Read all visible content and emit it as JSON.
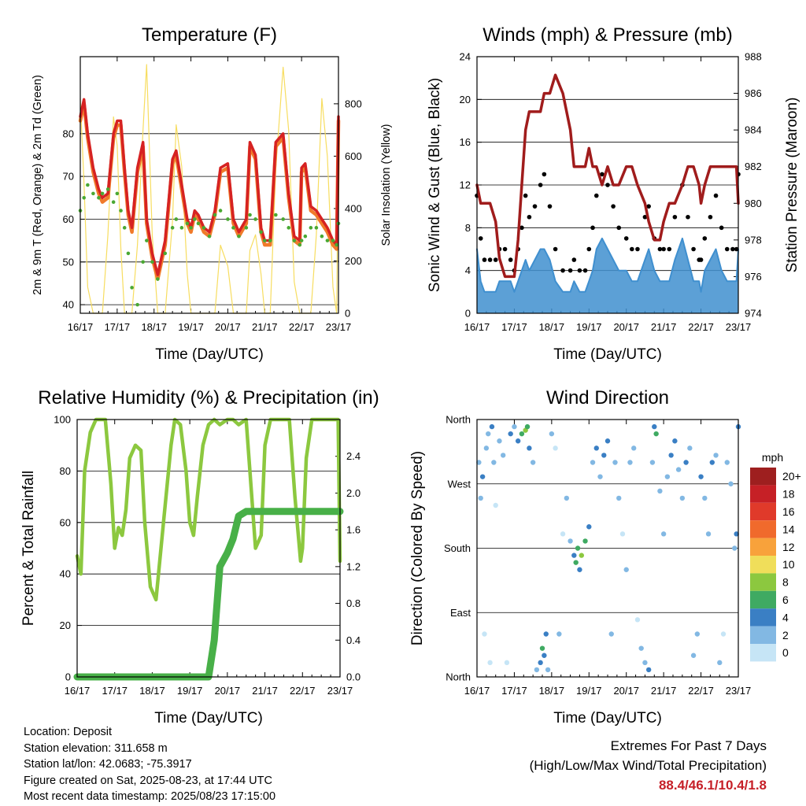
{
  "chart_data": [
    {
      "type": "line",
      "title": "Temperature (F)",
      "xlabel": "Time (Day/UTC)",
      "ylabel": "2m & 9m T (Red, Orange) & 2m Td (Green)",
      "y2label": "Solar Insolation (Yellow)",
      "xticks": [
        "16/17",
        "17/17",
        "18/17",
        "19/17",
        "20/17",
        "21/17",
        "22/17",
        "23/17"
      ],
      "ylim": [
        38,
        98
      ],
      "yticks": [
        40,
        50,
        60,
        70,
        80
      ],
      "y2lim": [
        0,
        980
      ],
      "y2ticks": [
        0,
        200,
        400,
        600,
        800
      ],
      "x": [
        0.0,
        0.1,
        0.2,
        0.35,
        0.5,
        0.6,
        0.75,
        0.9,
        1.0,
        1.1,
        1.2,
        1.3,
        1.4,
        1.55,
        1.7,
        1.8,
        1.95,
        2.1,
        2.3,
        2.5,
        2.6,
        2.75,
        2.9,
        3.0,
        3.1,
        3.2,
        3.35,
        3.5,
        3.65,
        3.8,
        4.0,
        4.15,
        4.3,
        4.5,
        4.6,
        4.75,
        4.9,
        5.0,
        5.15,
        5.3,
        5.5,
        5.65,
        5.8,
        5.95,
        6.0,
        6.1,
        6.25,
        6.4,
        6.55,
        6.7,
        6.85,
        6.95,
        7.0
      ],
      "series": [
        {
          "name": "2m T",
          "color": "#d62222",
          "values": [
            84,
            88,
            80,
            72,
            67,
            65,
            66,
            80,
            83,
            83,
            72,
            62,
            58,
            72,
            78,
            60,
            52,
            47,
            55,
            74,
            76,
            68,
            60,
            58,
            62,
            61,
            58,
            57,
            62,
            72,
            73,
            60,
            57,
            60,
            78,
            75,
            58,
            55,
            55,
            78,
            80,
            66,
            56,
            55,
            72,
            73,
            63,
            62,
            60,
            58,
            55,
            54,
            84
          ]
        },
        {
          "name": "9m T",
          "color": "#f07a2a",
          "values": [
            83,
            87,
            79,
            71,
            66,
            64,
            65,
            79,
            82,
            82,
            71,
            61,
            57,
            71,
            77,
            59,
            51,
            46,
            54,
            73,
            75,
            67,
            59,
            57,
            61,
            60,
            57,
            56,
            61,
            71,
            72,
            59,
            56,
            59,
            77,
            74,
            57,
            54,
            54,
            77,
            79,
            65,
            55,
            54,
            71,
            72,
            62,
            61,
            59,
            57,
            54,
            53,
            83
          ]
        },
        {
          "name": "2m Td",
          "color": "#4aa832",
          "values": [
            62,
            65,
            68,
            66,
            65,
            66,
            67,
            64,
            66,
            62,
            58,
            52,
            44,
            40,
            50,
            55,
            50,
            46,
            52,
            58,
            60,
            58,
            59,
            58,
            60,
            59,
            58,
            56,
            61,
            62,
            60,
            58,
            56,
            58,
            61,
            60,
            57,
            55,
            55,
            61,
            60,
            58,
            55,
            54,
            55,
            56,
            58,
            58,
            56,
            55,
            55,
            54,
            59
          ]
        },
        {
          "name": "Solar Insolation",
          "axis": "y2",
          "color": "#f7dd60",
          "values": [
            820,
            500,
            100,
            0,
            0,
            0,
            300,
            750,
            640,
            250,
            0,
            0,
            0,
            260,
            700,
            950,
            300,
            0,
            0,
            350,
            720,
            560,
            150,
            0,
            0,
            0,
            0,
            0,
            0,
            260,
            180,
            0,
            0,
            0,
            240,
            300,
            150,
            0,
            0,
            550,
            940,
            700,
            120,
            0,
            0,
            0,
            0,
            300,
            820,
            600,
            100,
            0,
            740
          ]
        }
      ]
    },
    {
      "type": "line",
      "title": "Winds (mph) & Pressure (mb)",
      "xlabel": "Time (Day/UTC)",
      "ylabel": "Sonic Wind & Gust (Blue, Black)",
      "y2label": "Station Pressure (Maroon)",
      "xticks": [
        "16/17",
        "17/17",
        "18/17",
        "19/17",
        "20/17",
        "21/17",
        "22/17",
        "23/17"
      ],
      "ylim": [
        0,
        24
      ],
      "yticks": [
        0,
        4,
        8,
        12,
        16,
        20,
        24
      ],
      "y2lim": [
        974,
        988
      ],
      "y2ticks": [
        974,
        976,
        978,
        980,
        982,
        984,
        986,
        988
      ],
      "x": [
        0.0,
        0.1,
        0.2,
        0.35,
        0.5,
        0.6,
        0.75,
        0.9,
        1.0,
        1.1,
        1.2,
        1.3,
        1.4,
        1.55,
        1.7,
        1.8,
        1.95,
        2.1,
        2.3,
        2.5,
        2.6,
        2.75,
        2.9,
        3.0,
        3.1,
        3.2,
        3.35,
        3.5,
        3.65,
        3.8,
        4.0,
        4.15,
        4.3,
        4.5,
        4.6,
        4.75,
        4.9,
        5.0,
        5.15,
        5.3,
        5.5,
        5.65,
        5.8,
        5.95,
        6.0,
        6.1,
        6.25,
        6.4,
        6.55,
        6.7,
        6.85,
        6.95,
        7.0
      ],
      "series": [
        {
          "name": "Sonic Wind",
          "color": "#3f8fcf",
          "values": [
            6,
            3,
            2,
            2,
            2,
            3,
            3,
            3,
            2,
            3,
            4,
            5,
            4,
            5,
            6,
            6,
            5,
            3,
            2,
            2,
            3,
            2,
            2,
            3,
            4,
            6,
            7,
            6,
            5,
            4,
            4,
            3,
            3,
            5,
            6,
            4,
            3,
            3,
            3,
            5,
            7,
            5,
            3,
            3,
            2,
            4,
            5,
            6,
            4,
            3,
            3,
            3,
            6
          ]
        },
        {
          "name": "Gust",
          "color": "#000000",
          "values": [
            11,
            7,
            5,
            5,
            5,
            6,
            6,
            5,
            4,
            6,
            8,
            11,
            9,
            10,
            12,
            13,
            10,
            6,
            4,
            4,
            5,
            4,
            4,
            6,
            8,
            11,
            13,
            12,
            10,
            8,
            7,
            6,
            6,
            9,
            10,
            7,
            6,
            6,
            6,
            9,
            12,
            9,
            6,
            5,
            5,
            7,
            9,
            11,
            8,
            6,
            6,
            6,
            13
          ]
        },
        {
          "name": "Station Pressure",
          "axis": "y2",
          "color": "#a01c1c",
          "values": [
            981,
            980,
            980,
            980,
            979,
            977,
            976,
            976,
            976,
            978,
            981,
            984,
            985,
            985,
            985,
            986,
            986,
            987,
            986,
            984,
            982,
            982,
            982,
            983,
            982,
            982,
            981,
            982,
            981,
            981,
            982,
            982,
            981,
            980,
            979,
            978,
            978,
            979,
            980,
            980,
            981,
            982,
            982,
            981,
            980,
            981,
            982,
            982,
            982,
            982,
            982,
            982,
            980
          ]
        }
      ]
    },
    {
      "type": "line",
      "title": "Relative Humidity (%) & Precipitation (in)",
      "xlabel": "Time (Day/UTC)",
      "ylabel": "Percent & Total Rainfall",
      "xticks": [
        "16/17",
        "17/17",
        "18/17",
        "19/17",
        "20/17",
        "21/17",
        "22/17",
        "23/17"
      ],
      "ylim": [
        0,
        100
      ],
      "yticks": [
        0,
        20,
        40,
        60,
        80,
        100
      ],
      "y2lim": [
        0,
        2.8
      ],
      "y2ticks": [
        "0.0",
        "0.4",
        "0.8",
        "1.2",
        "1.6",
        "2.0",
        "2.4"
      ],
      "x": [
        0.0,
        0.1,
        0.2,
        0.35,
        0.5,
        0.6,
        0.75,
        0.9,
        1.0,
        1.1,
        1.2,
        1.3,
        1.4,
        1.55,
        1.7,
        1.8,
        1.95,
        2.1,
        2.3,
        2.5,
        2.6,
        2.75,
        2.9,
        3.0,
        3.1,
        3.2,
        3.35,
        3.5,
        3.65,
        3.8,
        4.0,
        4.15,
        4.3,
        4.5,
        4.6,
        4.75,
        4.9,
        5.0,
        5.15,
        5.3,
        5.5,
        5.65,
        5.8,
        5.95,
        6.0,
        6.1,
        6.25,
        6.4,
        6.55,
        6.7,
        6.85,
        6.95,
        7.0
      ],
      "series": [
        {
          "name": "Relative Humidity",
          "color": "#8cc83f",
          "values": [
            47,
            40,
            80,
            95,
            100,
            100,
            100,
            75,
            50,
            58,
            55,
            65,
            85,
            90,
            88,
            60,
            35,
            30,
            60,
            90,
            100,
            98,
            80,
            60,
            55,
            70,
            90,
            98,
            100,
            98,
            100,
            100,
            98,
            100,
            80,
            50,
            55,
            90,
            100,
            100,
            100,
            100,
            70,
            45,
            50,
            85,
            100,
            100,
            100,
            100,
            100,
            100,
            45
          ]
        },
        {
          "name": "Total Rainfall",
          "axis": "y2",
          "color": "#48b048",
          "values": [
            0,
            0,
            0,
            0,
            0,
            0,
            0,
            0,
            0,
            0,
            0,
            0,
            0,
            0,
            0,
            0,
            0,
            0,
            0,
            0,
            0,
            0,
            0,
            0,
            0,
            0,
            0,
            0,
            0.4,
            1.2,
            1.35,
            1.5,
            1.75,
            1.8,
            1.8,
            1.8,
            1.8,
            1.8,
            1.8,
            1.8,
            1.8,
            1.8,
            1.8,
            1.8,
            1.8,
            1.8,
            1.8,
            1.8,
            1.8,
            1.8,
            1.8,
            1.8,
            1.8
          ]
        }
      ]
    },
    {
      "type": "scatter",
      "title": "Wind Direction",
      "xlabel": "Time (Day/UTC)",
      "ylabel": "Direction (Colored By Speed)",
      "xticks": [
        "16/17",
        "17/17",
        "18/17",
        "19/17",
        "20/17",
        "21/17",
        "22/17",
        "23/17"
      ],
      "yticks": [
        "North",
        "East",
        "South",
        "West",
        "North"
      ],
      "ylim": [
        0,
        360
      ],
      "legend": {
        "title": "mph",
        "labels": [
          "20+",
          "18",
          "16",
          "14",
          "12",
          "10",
          "8",
          "6",
          "4",
          "2",
          "0"
        ],
        "colors": [
          "#9e1f1f",
          "#c62026",
          "#e03a2a",
          "#f06a2c",
          "#f8a23b",
          "#f0de5a",
          "#8cc83f",
          "#3faa62",
          "#3a7fc4",
          "#82b8e3",
          "#c6e5f6"
        ]
      },
      "points": [
        [
          0.05,
          300,
          3
        ],
        [
          0.1,
          250,
          2
        ],
        [
          0.15,
          280,
          4
        ],
        [
          0.2,
          60,
          1
        ],
        [
          0.25,
          320,
          3
        ],
        [
          0.3,
          340,
          2
        ],
        [
          0.35,
          20,
          1
        ],
        [
          0.4,
          350,
          4
        ],
        [
          0.45,
          300,
          2
        ],
        [
          0.5,
          240,
          1
        ],
        [
          0.6,
          330,
          3
        ],
        [
          0.7,
          310,
          2
        ],
        [
          0.8,
          20,
          1
        ],
        [
          0.9,
          340,
          4
        ],
        [
          1.0,
          350,
          3
        ],
        [
          1.1,
          330,
          4
        ],
        [
          1.2,
          340,
          6
        ],
        [
          1.3,
          345,
          8
        ],
        [
          1.35,
          350,
          6
        ],
        [
          1.4,
          320,
          4
        ],
        [
          1.5,
          300,
          2
        ],
        [
          1.6,
          10,
          3
        ],
        [
          1.7,
          20,
          5
        ],
        [
          1.75,
          40,
          6
        ],
        [
          1.8,
          30,
          5
        ],
        [
          1.85,
          60,
          4
        ],
        [
          1.9,
          10,
          3
        ],
        [
          2.0,
          340,
          2
        ],
        [
          2.1,
          320,
          1
        ],
        [
          2.2,
          60,
          2
        ],
        [
          2.3,
          200,
          1
        ],
        [
          2.4,
          250,
          2
        ],
        [
          2.5,
          190,
          3
        ],
        [
          2.6,
          170,
          5
        ],
        [
          2.65,
          160,
          7
        ],
        [
          2.7,
          180,
          6
        ],
        [
          2.75,
          150,
          5
        ],
        [
          2.8,
          170,
          8
        ],
        [
          2.9,
          190,
          6
        ],
        [
          3.0,
          210,
          4
        ],
        [
          3.1,
          300,
          3
        ],
        [
          3.2,
          320,
          4
        ],
        [
          3.3,
          280,
          3
        ],
        [
          3.4,
          310,
          5
        ],
        [
          3.5,
          330,
          4
        ],
        [
          3.6,
          60,
          2
        ],
        [
          3.7,
          300,
          3
        ],
        [
          3.8,
          250,
          2
        ],
        [
          3.9,
          200,
          1
        ],
        [
          4.0,
          150,
          2
        ],
        [
          4.1,
          300,
          3
        ],
        [
          4.2,
          320,
          2
        ],
        [
          4.3,
          80,
          1
        ],
        [
          4.4,
          40,
          2
        ],
        [
          4.5,
          20,
          3
        ],
        [
          4.6,
          10,
          4
        ],
        [
          4.7,
          300,
          2
        ],
        [
          4.75,
          350,
          5
        ],
        [
          4.8,
          340,
          6
        ],
        [
          4.9,
          260,
          3
        ],
        [
          5.0,
          200,
          2
        ],
        [
          5.1,
          280,
          3
        ],
        [
          5.2,
          310,
          4
        ],
        [
          5.3,
          330,
          5
        ],
        [
          5.4,
          290,
          3
        ],
        [
          5.5,
          250,
          2
        ],
        [
          5.6,
          300,
          4
        ],
        [
          5.7,
          320,
          3
        ],
        [
          5.8,
          30,
          2
        ],
        [
          5.9,
          60,
          3
        ],
        [
          6.0,
          280,
          4
        ],
        [
          6.1,
          250,
          3
        ],
        [
          6.2,
          200,
          2
        ],
        [
          6.3,
          300,
          4
        ],
        [
          6.4,
          310,
          3
        ],
        [
          6.5,
          20,
          2
        ],
        [
          6.6,
          60,
          1
        ],
        [
          6.7,
          300,
          3
        ],
        [
          6.8,
          270,
          2
        ],
        [
          6.9,
          180,
          3
        ],
        [
          6.95,
          200,
          5
        ],
        [
          7.0,
          350,
          4
        ]
      ]
    }
  ],
  "station_info": {
    "location": "Location: Deposit",
    "elevation": "Station elevation: 311.658 m",
    "latlon": "Station lat/lon: 42.0683; -75.3917",
    "created": "Figure created on Sat, 2025-08-23, at 17:44 UTC",
    "recent": "Most recent data timestamp: 2025/08/23 17:15:00"
  },
  "extremes": {
    "title": "Extremes For Past 7 Days",
    "subtitle": "(High/Low/Max Wind/Total Precipitation)",
    "values": "88.4/46.1/10.4/1.8",
    "color": "#c62028"
  }
}
